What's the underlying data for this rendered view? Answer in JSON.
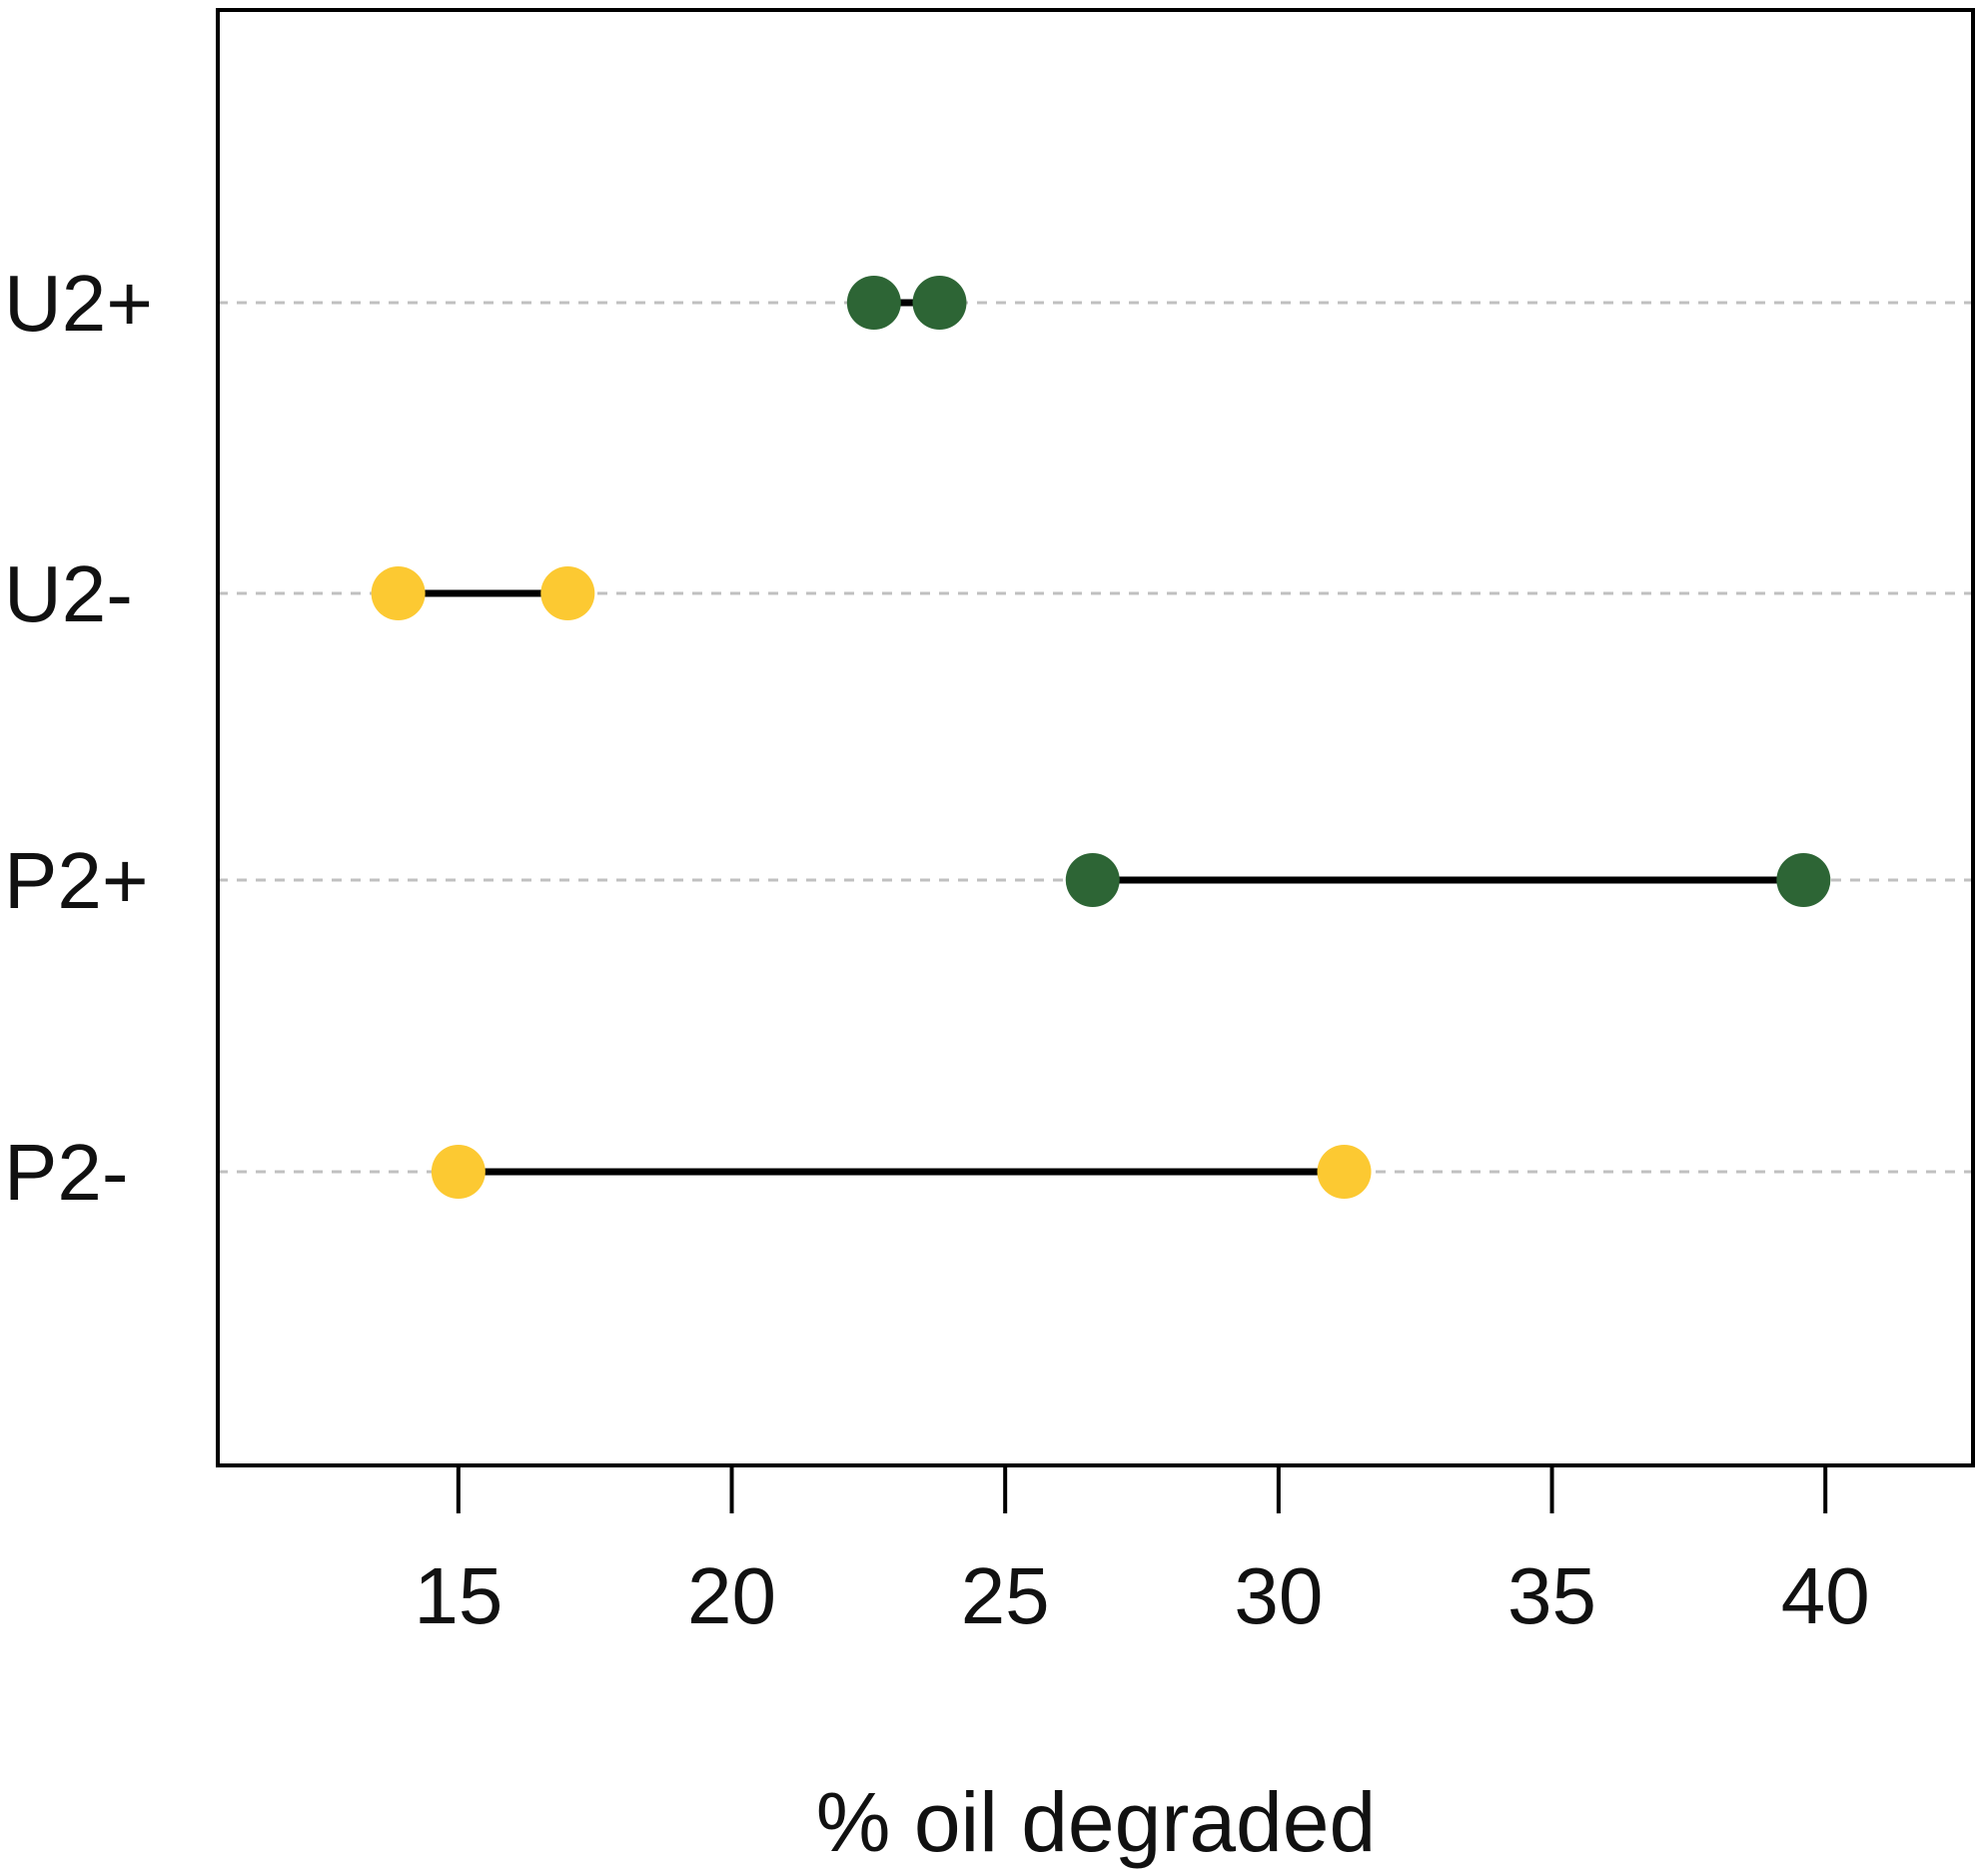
{
  "chart_data": {
    "type": "dumbbell",
    "xlabel": "% oil degraded",
    "ylabel": "",
    "xlim": [
      10.6,
      42.7
    ],
    "xticks": [
      15,
      20,
      25,
      30,
      35,
      40
    ],
    "grid": "horizontal dashed",
    "legend": "none",
    "rows": [
      {
        "label": "U2+",
        "min": 22.6,
        "max": 23.8,
        "color": "#2d6535"
      },
      {
        "label": "U2-",
        "min": 13.9,
        "max": 17.0,
        "color": "#fcc932"
      },
      {
        "label": "P2+",
        "min": 26.6,
        "max": 39.6,
        "color": "#2d6535"
      },
      {
        "label": "P2-",
        "min": 15.0,
        "max": 31.2,
        "color": "#fcc932"
      }
    ],
    "colors": {
      "connector": "#000000",
      "grid": "#c0c0c0",
      "frame": "#000000"
    }
  }
}
